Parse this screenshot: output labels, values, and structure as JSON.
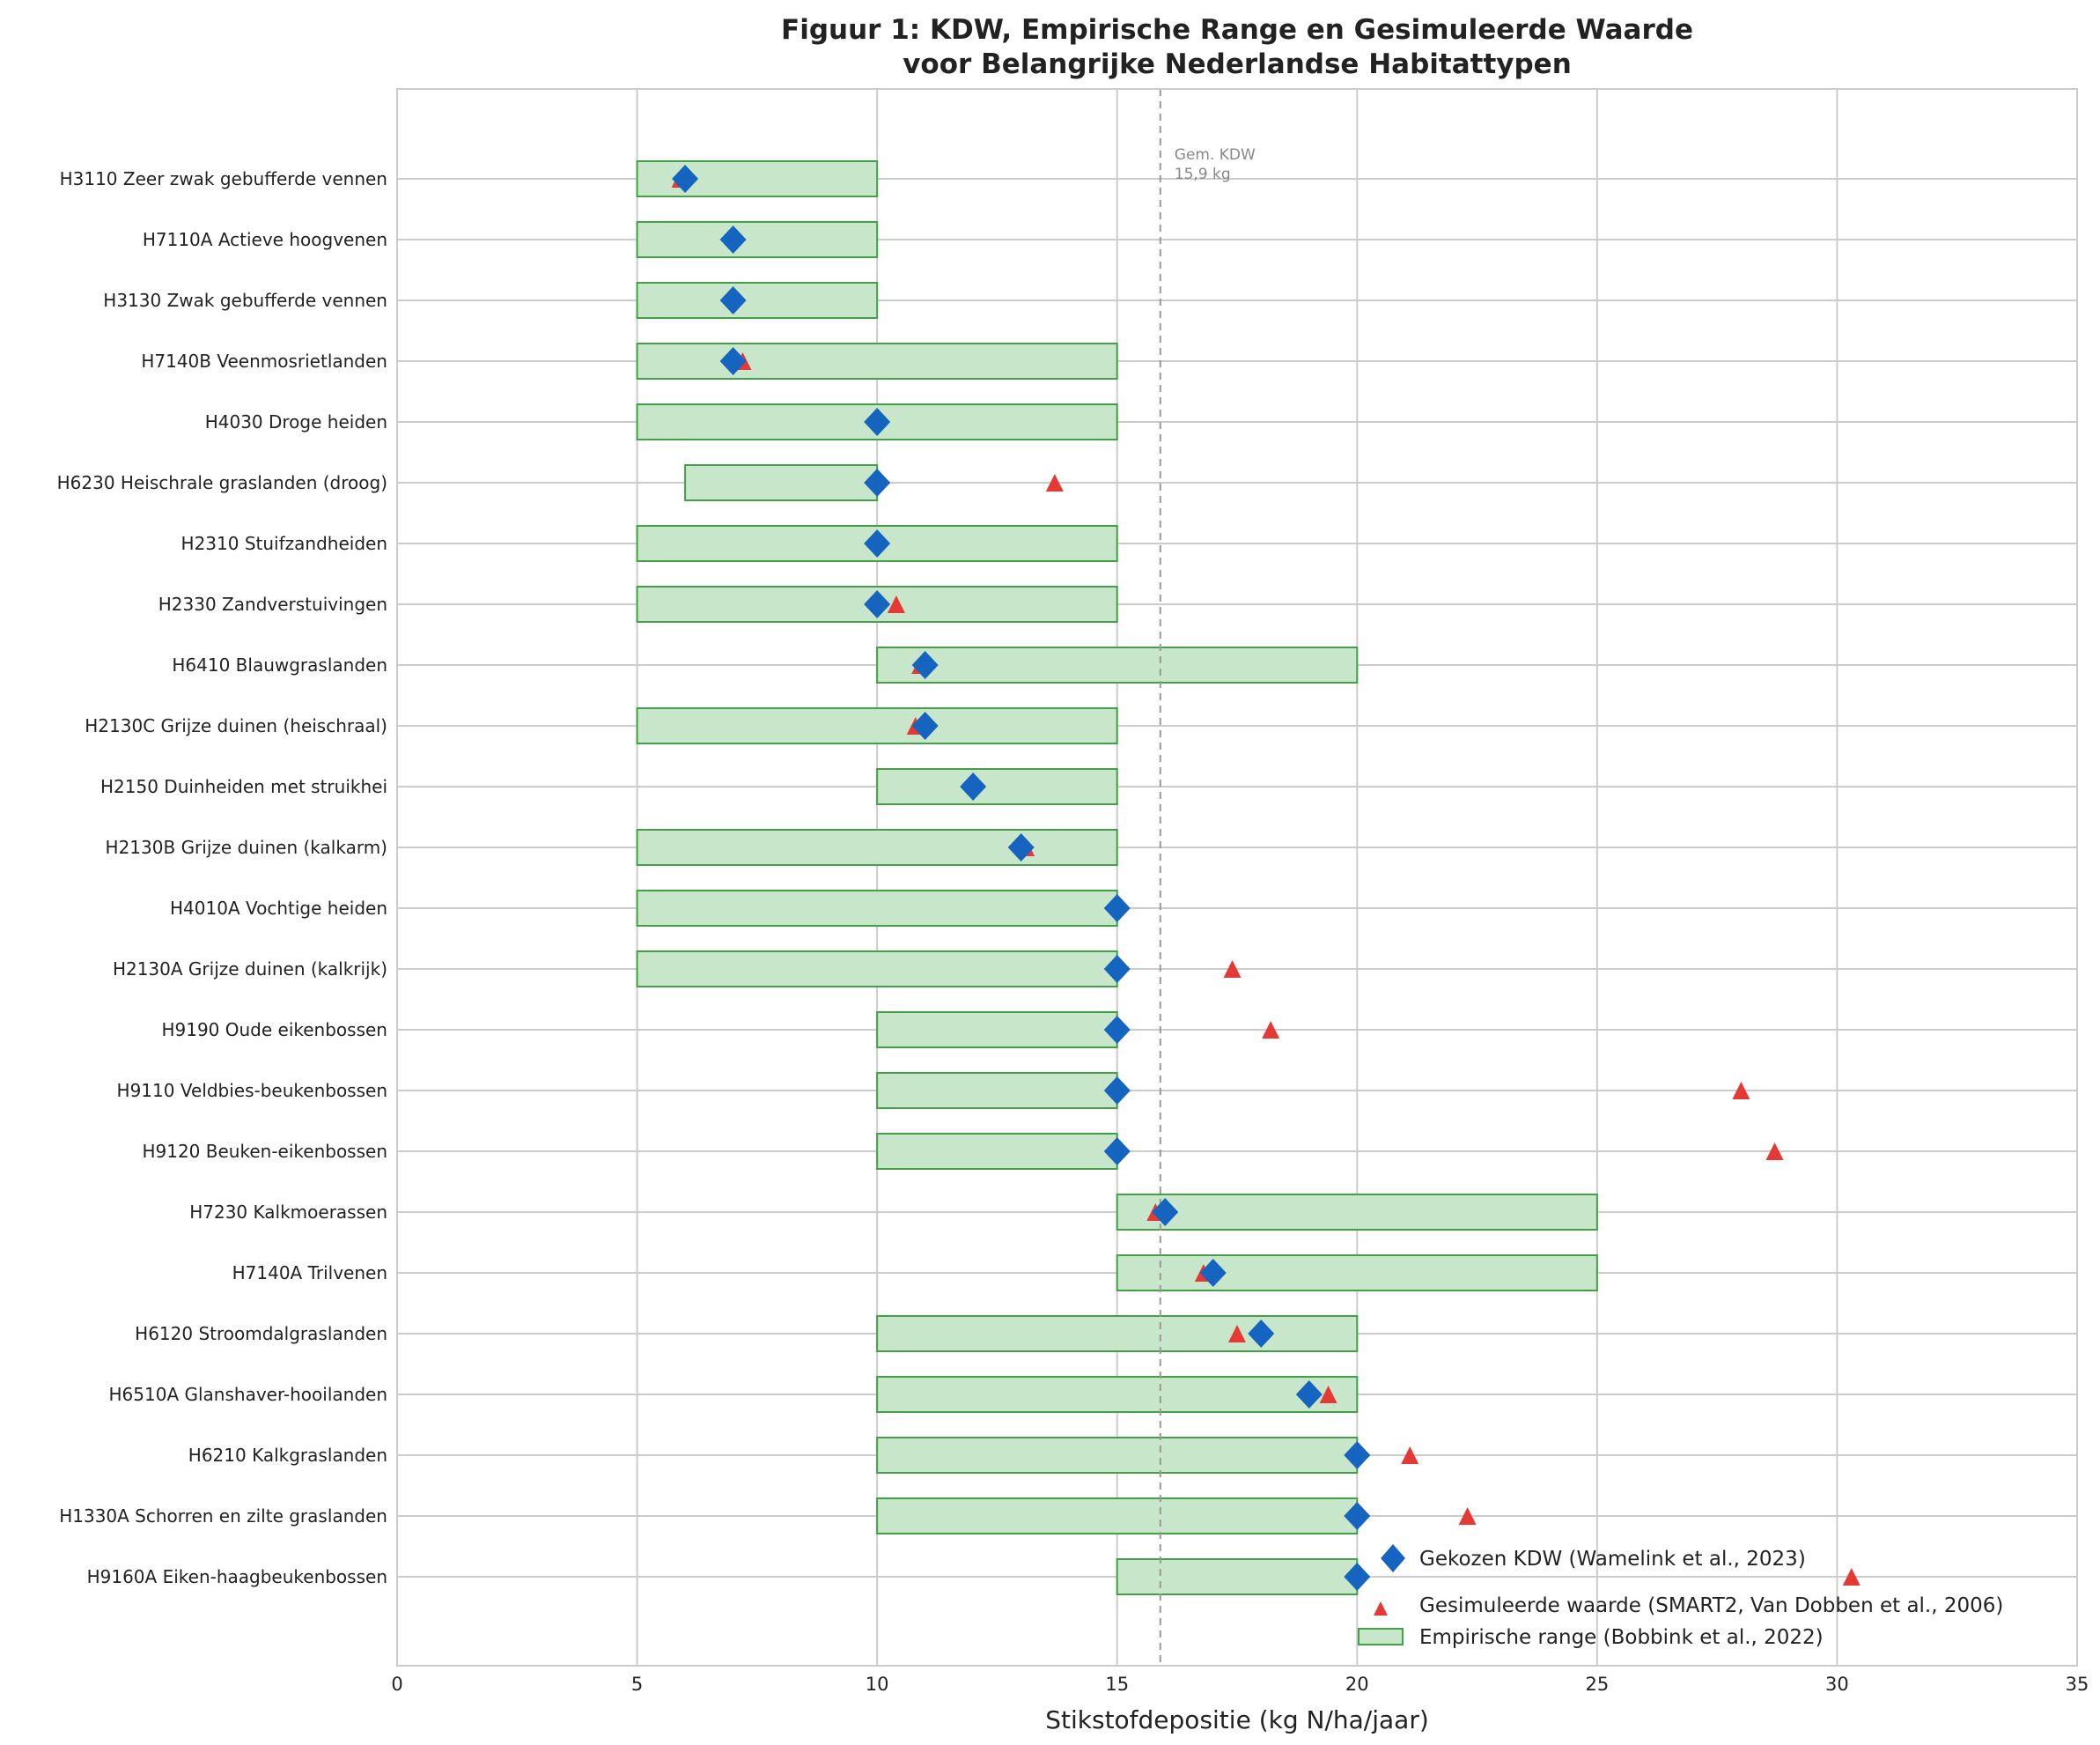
{
  "chart_data": {
    "type": "range-bar-with-markers",
    "title_line1": "Figuur 1: KDW, Empirische Range en Gesimuleerde Waarde",
    "title_line2": "voor Belangrijke Nederlandse Habitattypen",
    "xlabel": "Stikstofdepositie (kg N/ha/jaar)",
    "ylabel": "",
    "xlim": [
      0,
      35
    ],
    "xticks": [
      0,
      5,
      10,
      15,
      20,
      25,
      30,
      35
    ],
    "grid": true,
    "legend_placement": "bottom-right",
    "reference_line": {
      "value": 15.9,
      "label_line1": "Gem. KDW",
      "label_line2": "15,9 kg",
      "color": "#999999"
    },
    "colors": {
      "kdw": "#1565C0",
      "simulated": "#E53935",
      "range_fill": "#C8E6C9",
      "range_edge": "#43A047"
    },
    "legend": [
      {
        "key": "kdw",
        "label": "Gekozen KDW (Wamelink et al., 2023)"
      },
      {
        "key": "simulated",
        "label": "Gesimuleerde waarde (SMART2, Van Dobben et al., 2006)"
      },
      {
        "key": "range",
        "label": "Empirische range (Bobbink et al., 2022)"
      }
    ],
    "categories": [
      "H3110 Zeer zwak gebufferde vennen",
      "H7110A Actieve hoogvenen",
      "H3130 Zwak gebufferde vennen",
      "H7140B Veenmosrietlanden",
      "H4030 Droge heiden",
      "H6230 Heischrale graslanden (droog)",
      "H2310 Stuifzandheiden",
      "H2330 Zandverstuivingen",
      "H6410 Blauwgraslanden",
      "H2130C Grijze duinen (heischraal)",
      "H2150 Duinheiden met struikhei",
      "H2130B Grijze duinen (kalkarm)",
      "H4010A Vochtige heiden",
      "H2130A Grijze duinen (kalkrijk)",
      "H9190 Oude eikenbossen",
      "H9110 Veldbies-beukenbossen",
      "H9120 Beuken-eikenbossen",
      "H7230 Kalkmoerassen",
      "H7140A Trilvenen",
      "H6120 Stroomdalgraslanden",
      "H6510A Glanshaver-hooilanden",
      "H6210 Kalkgraslanden",
      "H1330A Schorren en zilte graslanden",
      "H9160A Eiken-haagbeukenbossen"
    ],
    "kdw": [
      6,
      7,
      7,
      7,
      10,
      10,
      10,
      10,
      11,
      11,
      12,
      13,
      15,
      15,
      15,
      15,
      15,
      16,
      17,
      18,
      19,
      20,
      20,
      20
    ],
    "empirical_range": [
      [
        5,
        10
      ],
      [
        5,
        10
      ],
      [
        5,
        10
      ],
      [
        5,
        15
      ],
      [
        5,
        15
      ],
      [
        6,
        10
      ],
      [
        5,
        15
      ],
      [
        5,
        15
      ],
      [
        10,
        20
      ],
      [
        5,
        15
      ],
      [
        10,
        15
      ],
      [
        5,
        15
      ],
      [
        5,
        15
      ],
      [
        5,
        15
      ],
      [
        10,
        15
      ],
      [
        10,
        15
      ],
      [
        10,
        15
      ],
      [
        15,
        25
      ],
      [
        15,
        25
      ],
      [
        10,
        20
      ],
      [
        10,
        20
      ],
      [
        10,
        20
      ],
      [
        10,
        20
      ],
      [
        15,
        20
      ]
    ],
    "simulated": [
      5.9,
      null,
      null,
      7.2,
      null,
      13.7,
      null,
      10.4,
      10.9,
      10.8,
      null,
      13.1,
      null,
      17.4,
      18.2,
      28.0,
      28.7,
      15.8,
      16.8,
      17.5,
      19.4,
      21.1,
      22.3,
      30.3
    ]
  }
}
